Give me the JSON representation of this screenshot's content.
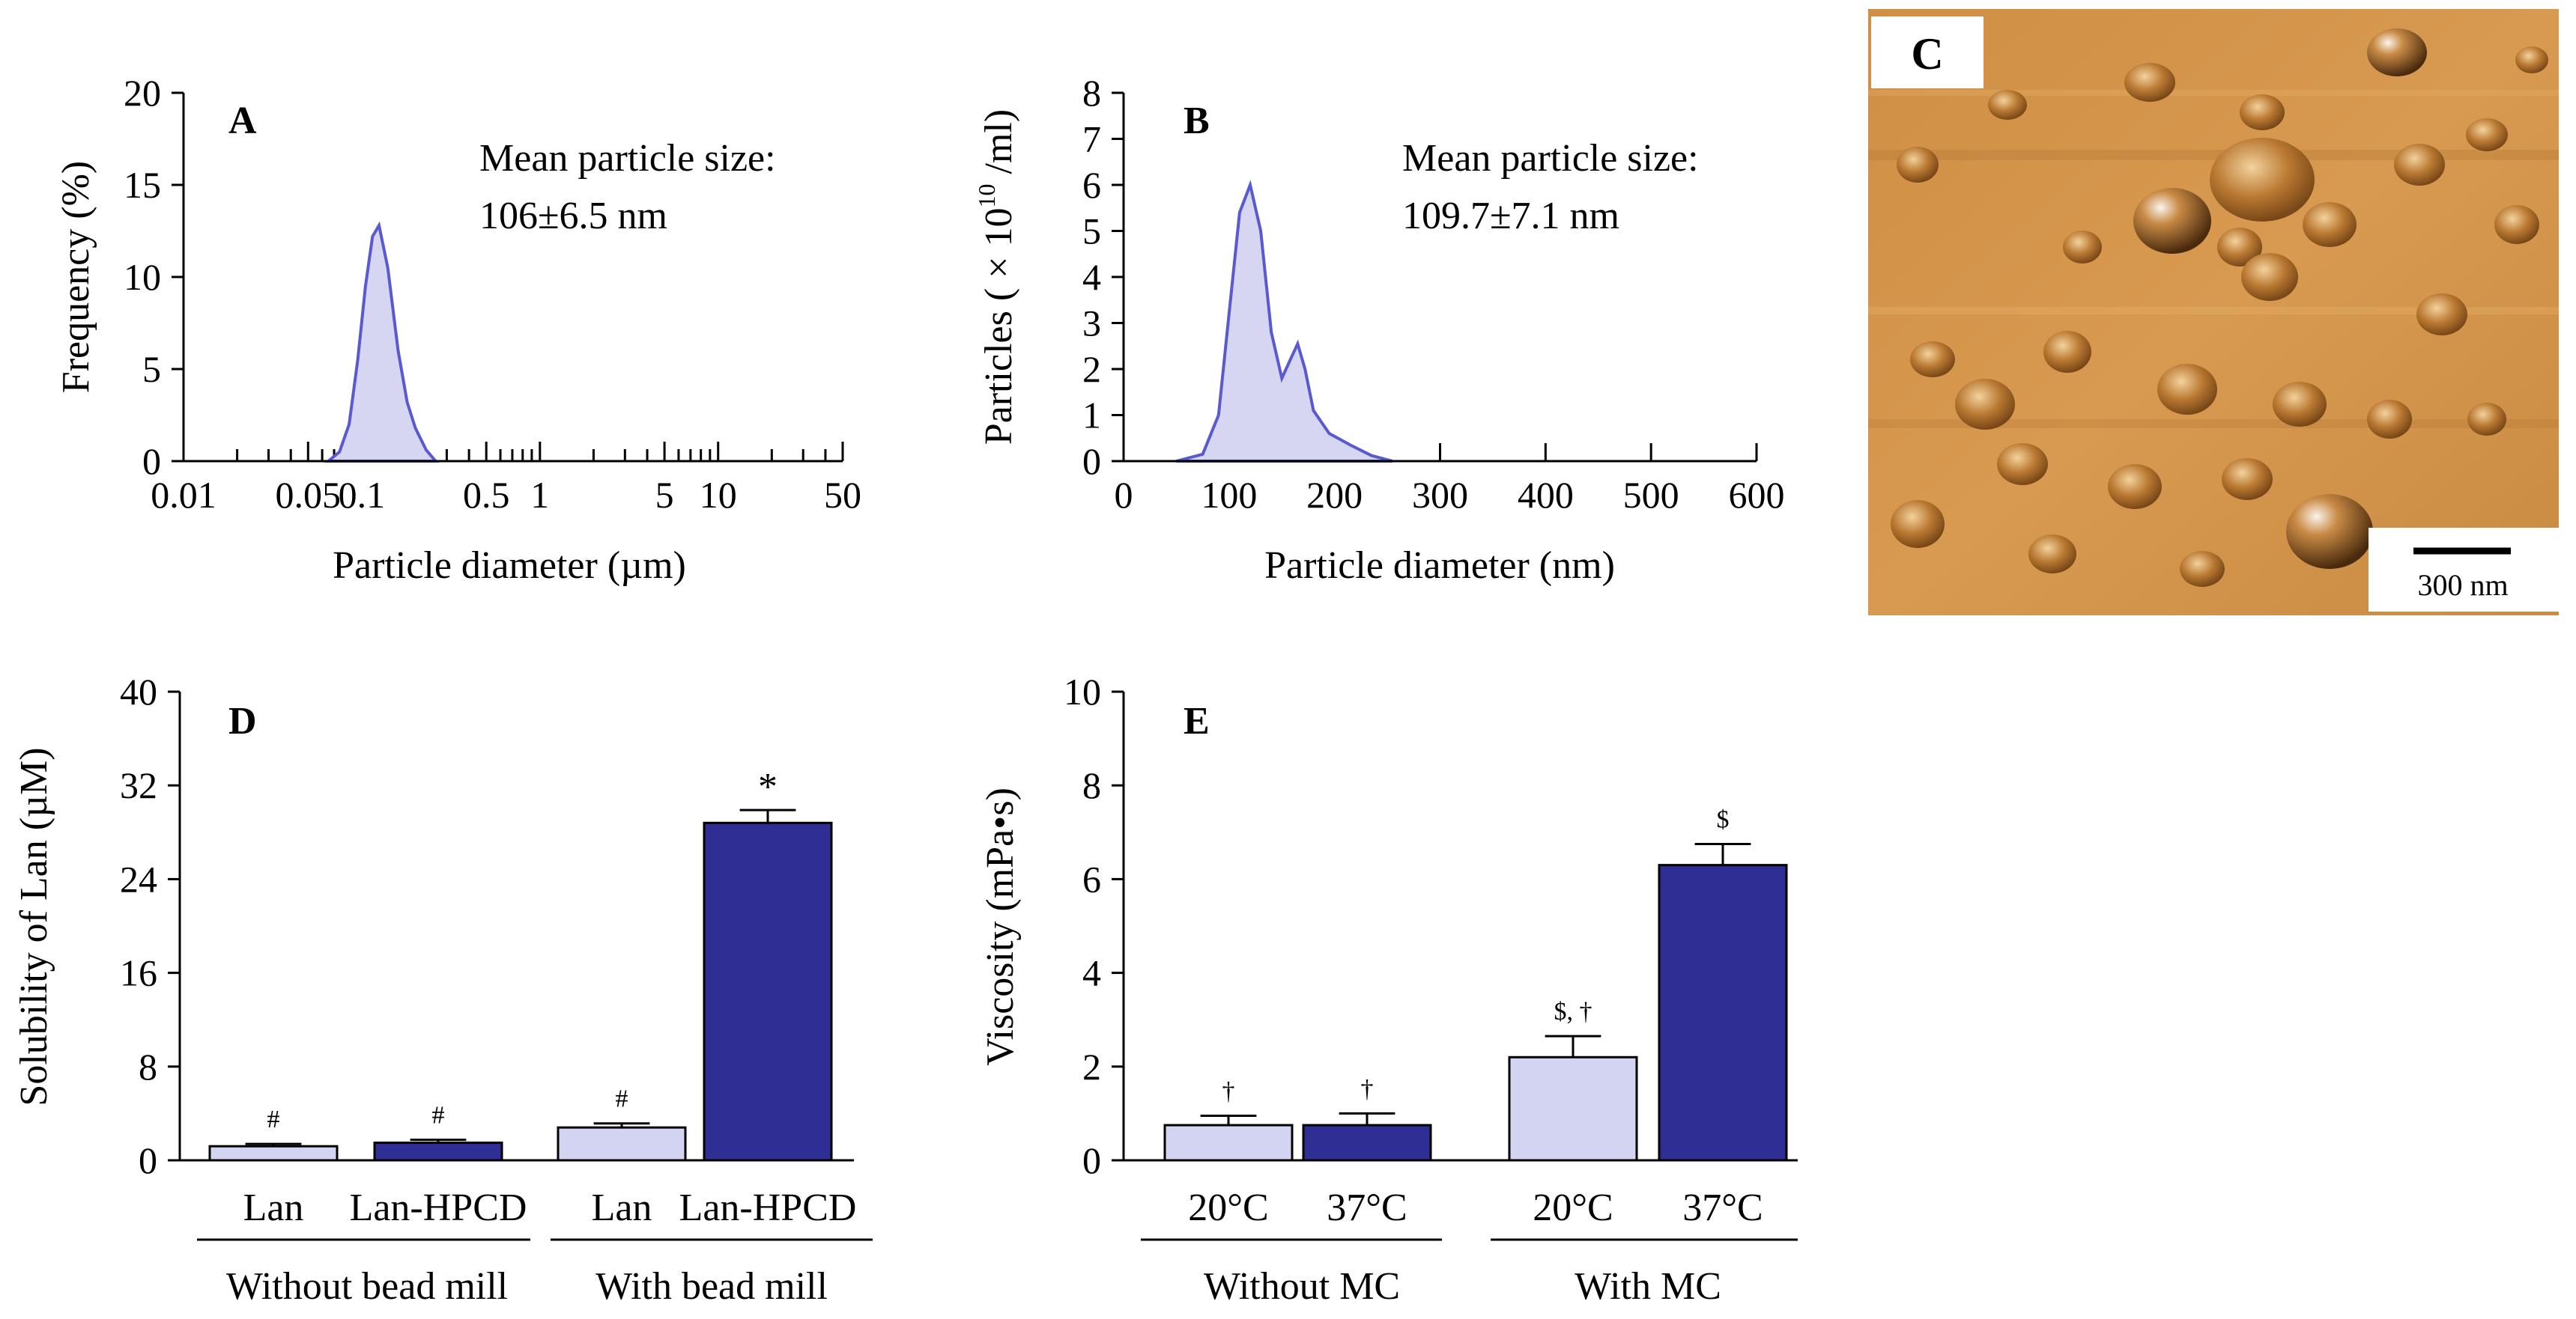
{
  "figure": {
    "colors": {
      "light": "#d3d3f2",
      "dark": "#2e2e94",
      "curve": "#5a5ad0",
      "fill": "#d6d6f2",
      "axis": "#000000"
    }
  },
  "panelA": {
    "label": "A",
    "annotation_line1": "Mean particle size:",
    "annotation_line2": "106±6.5  nm"
  },
  "panelB": {
    "label": "B",
    "annotation_line1": "Mean particle size:",
    "annotation_line2": "109.7±7.1  nm"
  },
  "panelC": {
    "label": "C",
    "scale_label": "300 nm"
  },
  "panelD": {
    "label": "D",
    "group_labels": [
      "Without bead mill",
      "With bead mill"
    ]
  },
  "panelE": {
    "label": "E",
    "group_labels": [
      "Without MC",
      "With MC"
    ]
  },
  "chart_data": [
    {
      "id": "A",
      "type": "area",
      "xscale": "log",
      "xlim": [
        0.01,
        50
      ],
      "ylim": [
        0,
        20
      ],
      "ylabel": "Frequency (%)",
      "xlabel": "Particle diameter (µm)",
      "xticks": [
        "0.01",
        "0.05",
        "0.1",
        "0.5",
        "1",
        "5",
        "10",
        "50"
      ],
      "xtick_values": [
        0.01,
        0.05,
        0.1,
        0.5,
        1,
        5,
        10,
        50
      ],
      "yticks": [
        "0",
        "5",
        "10",
        "15",
        "20"
      ],
      "x": [
        0.065,
        0.075,
        0.085,
        0.095,
        0.105,
        0.115,
        0.125,
        0.14,
        0.16,
        0.18,
        0.2,
        0.23,
        0.26
      ],
      "y": [
        0,
        0.5,
        2.0,
        5.5,
        9.5,
        12.2,
        12.8,
        10.5,
        6.0,
        3.2,
        1.8,
        0.6,
        0
      ]
    },
    {
      "id": "B",
      "type": "area",
      "xlim": [
        0,
        600
      ],
      "ylim": [
        0,
        8
      ],
      "ylabel": "Particles ( × 10",
      "ylabel_sup": "10",
      "ylabel_tail": " /ml)",
      "xlabel": "Particle diameter (nm)",
      "xticks": [
        "0",
        "100",
        "200",
        "300",
        "400",
        "500",
        "600"
      ],
      "xtick_values": [
        0,
        100,
        200,
        300,
        400,
        500,
        600
      ],
      "yticks": [
        "0",
        "1",
        "2",
        "3",
        "4",
        "5",
        "6",
        "7",
        "8"
      ],
      "x": [
        50,
        75,
        90,
        100,
        110,
        120,
        130,
        140,
        150,
        158,
        165,
        172,
        180,
        195,
        215,
        235,
        255
      ],
      "y": [
        0,
        0.15,
        1.0,
        3.2,
        5.4,
        6.0,
        5.0,
        2.8,
        1.8,
        2.2,
        2.55,
        2.0,
        1.1,
        0.6,
        0.35,
        0.12,
        0
      ]
    },
    {
      "id": "D",
      "type": "bar",
      "ylim": [
        0,
        40
      ],
      "ylabel": "Solubility of Lan (µM)",
      "yticks": [
        "0",
        "8",
        "16",
        "24",
        "32",
        "40"
      ],
      "categories": [
        "Lan",
        "Lan-HPCD",
        "Lan",
        "Lan-HPCD"
      ],
      "values": [
        1.2,
        1.5,
        2.8,
        28.8
      ],
      "errors": [
        0.2,
        0.25,
        0.35,
        1.1
      ],
      "annotations": [
        "#",
        "#",
        "#",
        "*"
      ],
      "groups": [
        "Without bead mill",
        "With bead mill"
      ]
    },
    {
      "id": "E",
      "type": "bar",
      "ylim": [
        0,
        10
      ],
      "ylabel": "Viscosity (mPa•s)",
      "yticks": [
        "0",
        "2",
        "4",
        "6",
        "8",
        "10"
      ],
      "categories": [
        "20°C",
        "37°C",
        "20°C",
        "37°C"
      ],
      "values": [
        0.75,
        0.75,
        2.2,
        6.3
      ],
      "errors": [
        0.2,
        0.25,
        0.45,
        0.45
      ],
      "annotations": [
        "†",
        "†",
        "$, †",
        "$"
      ],
      "groups": [
        "Without MC",
        "With MC"
      ]
    }
  ]
}
